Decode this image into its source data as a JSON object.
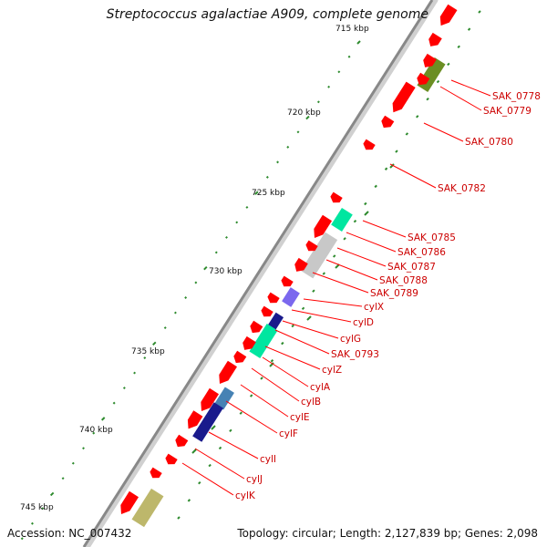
{
  "title": "Streptococcus agalactiae A909, complete genome",
  "footer": {
    "accession": "Accession: NC_007432",
    "topology": "Topology: circular; Length: 2,127,839 bp; Genes: 2,098"
  },
  "scale_labels": [
    "715 kbp",
    "720 kbp",
    "725 kbp",
    "730 kbp",
    "735 kbp",
    "740 kbp",
    "745 kbp"
  ],
  "gene_labels": [
    "SAK_0778",
    "SAK_0779",
    "SAK_0780",
    "SAK_0782",
    "SAK_0785",
    "SAK_0786",
    "SAK_0787",
    "SAK_0788",
    "SAK_0789",
    "cylX",
    "cylD",
    "cylG",
    "SAK_0793",
    "cylZ",
    "cylA",
    "cylB",
    "cylE",
    "cylF",
    "cylI",
    "cylJ",
    "cylK"
  ],
  "colors": {
    "backbone": "#888888",
    "gene_arrow": "#ff0000",
    "label": "#cc0000",
    "label_line": "#ff0000",
    "tick": "#2e8b2e",
    "feature_olive": "#6b8e23",
    "feature_teal": "#00e6a0",
    "feature_gray": "#c8c8c8",
    "feature_violet": "#7b68ee",
    "feature_navy": "#1a1a8c",
    "feature_steelblue": "#4682b4",
    "feature_khaki": "#bdb76b"
  }
}
